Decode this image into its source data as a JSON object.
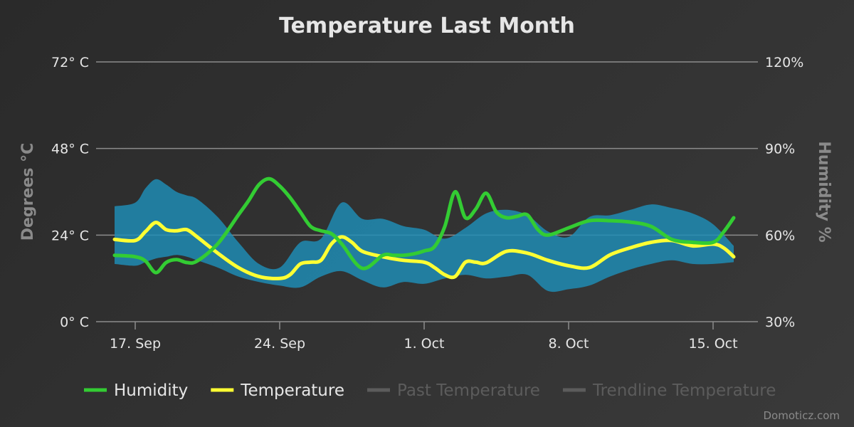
{
  "chart_data": {
    "type": "line",
    "title": "Temperature Last Month",
    "ylabel": "Degrees °C",
    "ylabel_right": "Humidity %",
    "ylim": [
      0,
      72
    ],
    "ylim_right": [
      30,
      120
    ],
    "y_ticks": [
      "0° C",
      "24° C",
      "48° C",
      "72° C"
    ],
    "y_ticks_right": [
      "30%",
      "60%",
      "90%",
      "120%"
    ],
    "x_ticks": [
      "17. Sep",
      "24. Sep",
      "1. Oct",
      "8. Oct",
      "15. Oct"
    ],
    "x_tick_days": [
      2,
      9,
      16,
      23,
      30
    ],
    "grid": true,
    "legend_position": "bottom",
    "series": [
      {
        "name": "Humidity",
        "axis": "right",
        "color": "#33cc33",
        "x": [
          1,
          2,
          2.5,
          3,
          3.5,
          4,
          4.5,
          5,
          6,
          7,
          7.5,
          8,
          8.5,
          9,
          9.5,
          10,
          10.5,
          11,
          11.5,
          12,
          13,
          14,
          14.5,
          15,
          15.5,
          16,
          16.5,
          17,
          17.5,
          18,
          18.5,
          19,
          19.5,
          20,
          20.5,
          21,
          21.5,
          22,
          23,
          24,
          25,
          26,
          27,
          28,
          29,
          30,
          30.5,
          31
        ],
        "values": [
          53,
          52.5,
          51,
          47,
          50.5,
          51.5,
          50.5,
          51,
          57,
          67,
          72,
          77.5,
          79.5,
          77,
          73,
          68,
          63,
          61.5,
          60.5,
          57,
          48.5,
          53,
          53,
          53,
          53.5,
          54.5,
          56,
          63,
          75,
          66,
          69,
          74.5,
          68,
          66,
          66.5,
          67,
          62,
          60,
          62.5,
          65,
          65,
          64.5,
          63,
          58.5,
          57.5,
          57.5,
          61,
          66
        ]
      },
      {
        "name": "Temperature",
        "axis": "left",
        "color": "#ffff33",
        "x": [
          1,
          2,
          2.5,
          3,
          3.5,
          4,
          4.5,
          5,
          6,
          7,
          8,
          9,
          9.5,
          10,
          10.5,
          11,
          11.5,
          12,
          12.5,
          13,
          14,
          15,
          16,
          16.5,
          17,
          17.5,
          18,
          18.5,
          19,
          20,
          21,
          22,
          23,
          24,
          25,
          26,
          27,
          28,
          29,
          30,
          30.5,
          31
        ],
        "values": [
          22.8,
          22.5,
          25,
          27.5,
          25.5,
          25.2,
          25.5,
          23.5,
          19,
          15,
          12.5,
          12.0,
          13,
          16,
          16.5,
          17,
          21.5,
          23.5,
          22,
          19.5,
          18,
          17,
          16.5,
          15,
          13,
          12.5,
          16.5,
          16.5,
          16.3,
          19.5,
          19,
          17,
          15.5,
          15,
          18.5,
          20.5,
          22,
          22.5,
          21,
          21.5,
          20.5,
          18
        ]
      },
      {
        "name": "Past Temperature",
        "axis": "left",
        "color": "#666666",
        "hidden": true,
        "x": [],
        "values": []
      },
      {
        "name": "Trendline Temperature",
        "axis": "left",
        "color": "#666666",
        "hidden": true,
        "x": [],
        "values": []
      }
    ],
    "range": {
      "name": "Temperature",
      "axis": "left",
      "color": "#1f8fb8",
      "x": [
        1,
        2,
        2.5,
        3,
        3.5,
        4,
        4.5,
        5,
        6,
        7,
        8,
        9,
        10,
        11,
        12,
        13,
        14,
        15,
        16,
        17,
        18,
        19,
        20,
        21,
        22,
        23,
        24,
        25,
        26,
        27,
        28,
        29,
        30,
        31
      ],
      "high": [
        32,
        33,
        37,
        39.5,
        38,
        36,
        35,
        34,
        29,
        22,
        16,
        15,
        22,
        23,
        33,
        28.5,
        28.5,
        26.5,
        25.5,
        23,
        26,
        30,
        31,
        29.5,
        25,
        23.5,
        29,
        29.5,
        31,
        32.5,
        31.5,
        30,
        27,
        21
      ],
      "low": [
        16,
        15.5,
        16.5,
        17.5,
        18,
        18.5,
        18,
        17,
        15,
        12.5,
        11,
        10,
        9.5,
        12.5,
        14,
        11.5,
        9.5,
        11,
        10.5,
        12,
        13,
        12,
        12.5,
        13,
        8.5,
        9,
        10,
        12.5,
        14.5,
        16,
        17,
        16,
        16,
        16.5
      ]
    }
  },
  "credits": "Domoticz.com"
}
